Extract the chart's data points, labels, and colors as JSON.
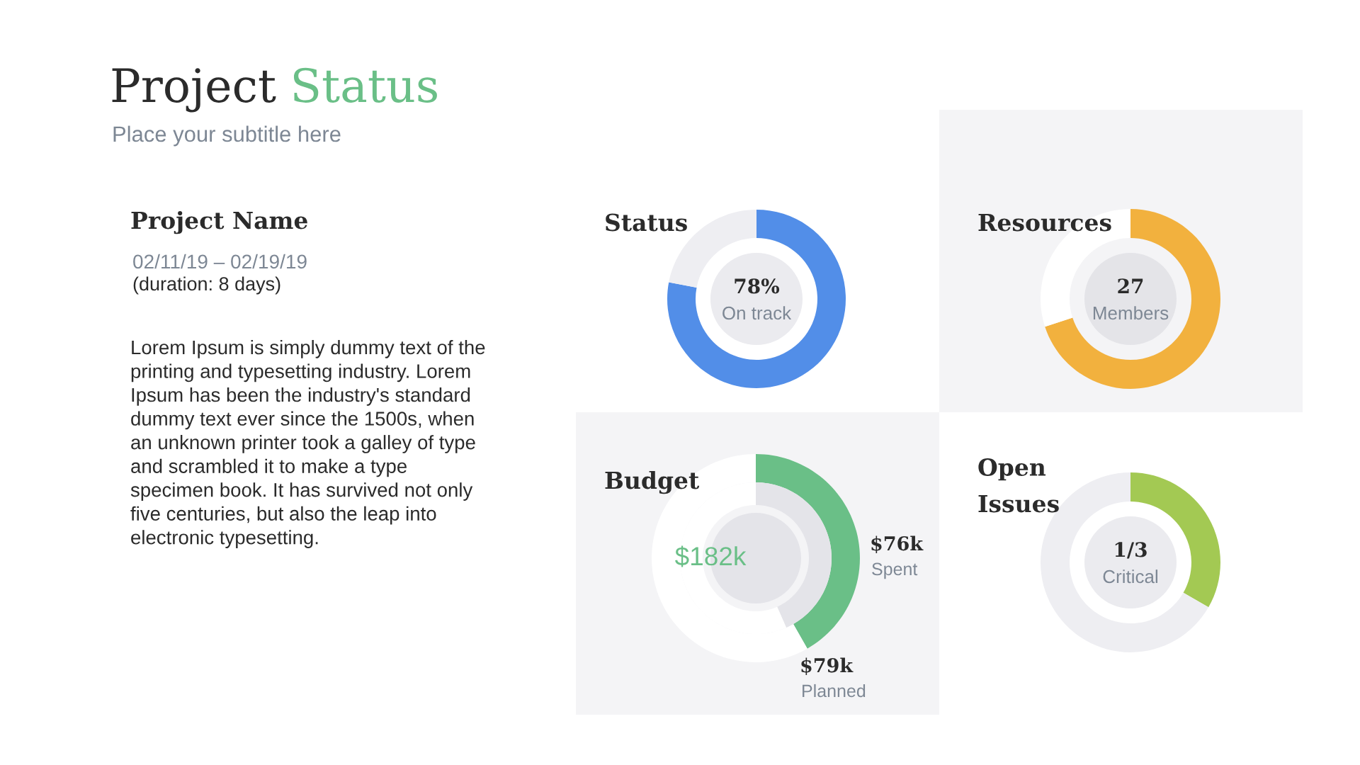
{
  "chart_data": [
    {
      "type": "other",
      "title": "Project Status",
      "subtitle": "Place your subtitle here",
      "annotations": [
        "Project Name",
        "02/11/19 – 02/19/19",
        "(duration: 8 days)",
        "Lorem Ipsum is simply dummy text of the\nprinting and typesetting industry. Lorem\nIpsum has been the industry's standard\ndummy text ever since the 1500s, when\nan unknown printer took a galley of type\nand scrambled it to make a type\nspecimen book. It has survived not only\nfive centuries, but also the leap into\nelectronic typesetting."
      ]
    },
    {
      "type": "donut",
      "title": "Status",
      "categories": [
        "On track",
        null
      ],
      "values": [
        78,
        22
      ],
      "colors": [
        "#528ee8",
        "#eeeef2"
      ],
      "value_labels": [
        "78%",
        null
      ]
    },
    {
      "type": "donut",
      "title": "Resources",
      "categories": [
        "Members",
        null
      ],
      "values": [
        70,
        30
      ],
      "colors": [
        "#f2b13e",
        "#ffffff"
      ],
      "annotations": [
        "27"
      ]
    },
    {
      "type": "donut",
      "title": "Budget",
      "series": [
        {
          "colors": [
            "#6abf87",
            "#ffffff"
          ],
          "values": [
            76,
            106
          ],
          "value_labels": [
            "$76k",
            null
          ]
        },
        {
          "colors": [
            "#e4e4e9",
            "#ffffff"
          ],
          "values": [
            79,
            103
          ],
          "value_labels": [
            "$79k",
            null
          ]
        }
      ],
      "annotations": [
        "$182k",
        "Spent",
        "Planned"
      ]
    },
    {
      "type": "donut",
      "title": "Open\nIssues",
      "values": [
        33.3,
        66.7
      ],
      "colors": [
        "#a3c953",
        "#eeeef2"
      ],
      "annotations": [
        "1/3",
        "Critical"
      ]
    }
  ]
}
